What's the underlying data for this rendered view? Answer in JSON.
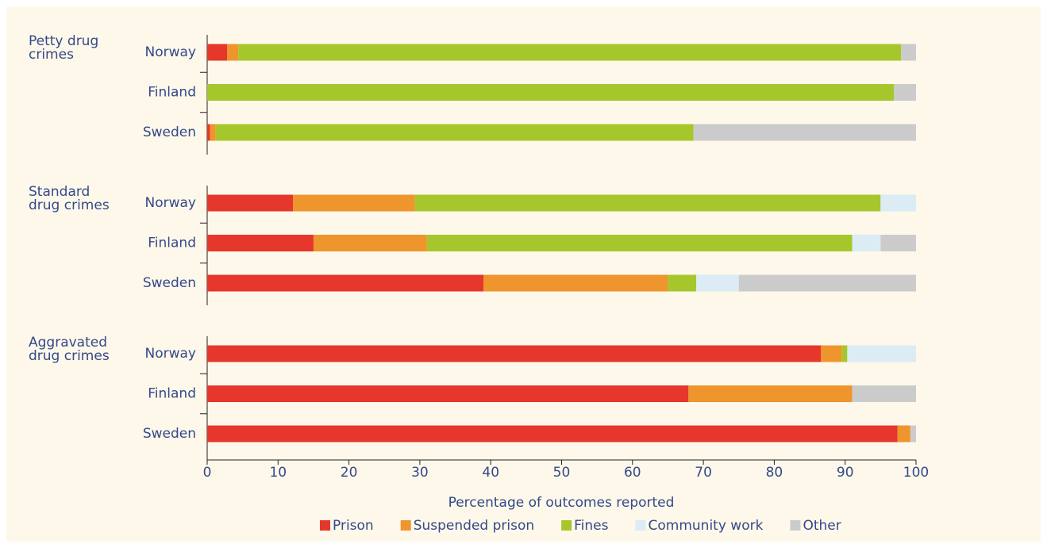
{
  "chart_data": {
    "type": "stacked-bar-horizontal",
    "groups": [
      "Petty drug crimes",
      "Standard drug crimes",
      "Aggravated drug crimes"
    ],
    "categories": [
      "Norway",
      "Finland",
      "Sweden",
      "Norway",
      "Finland",
      "Sweden",
      "Norway",
      "Finland",
      "Sweden"
    ],
    "series": [
      {
        "name": "Prison",
        "color": "#e5372b",
        "values": [
          2.8,
          0,
          0.4,
          12.1,
          15,
          39,
          86.6,
          67.9,
          97.4
        ]
      },
      {
        "name": "Suspended prison",
        "color": "#ef952d",
        "values": [
          1.6,
          0,
          0.8,
          17.2,
          16,
          26,
          2.9,
          23.1,
          1.8
        ]
      },
      {
        "name": "Fines",
        "color": "#a6c72b",
        "values": [
          93.5,
          96.9,
          67.4,
          65.7,
          60,
          4,
          0.8,
          0,
          0
        ]
      },
      {
        "name": "Community work",
        "color": "#dbecf5",
        "values": [
          0,
          0,
          0,
          5,
          4,
          6,
          9.7,
          0,
          0
        ]
      },
      {
        "name": "Other",
        "color": "#cccbcc",
        "values": [
          2.1,
          3.1,
          31.4,
          0,
          5,
          25,
          0,
          9,
          0.8
        ]
      }
    ],
    "xlabel": "Percentage of outcomes reported",
    "xlim": [
      0,
      100
    ],
    "xticks": [
      0,
      10,
      20,
      30,
      40,
      50,
      60,
      70,
      80,
      90,
      100
    ],
    "legend": "bottom"
  }
}
